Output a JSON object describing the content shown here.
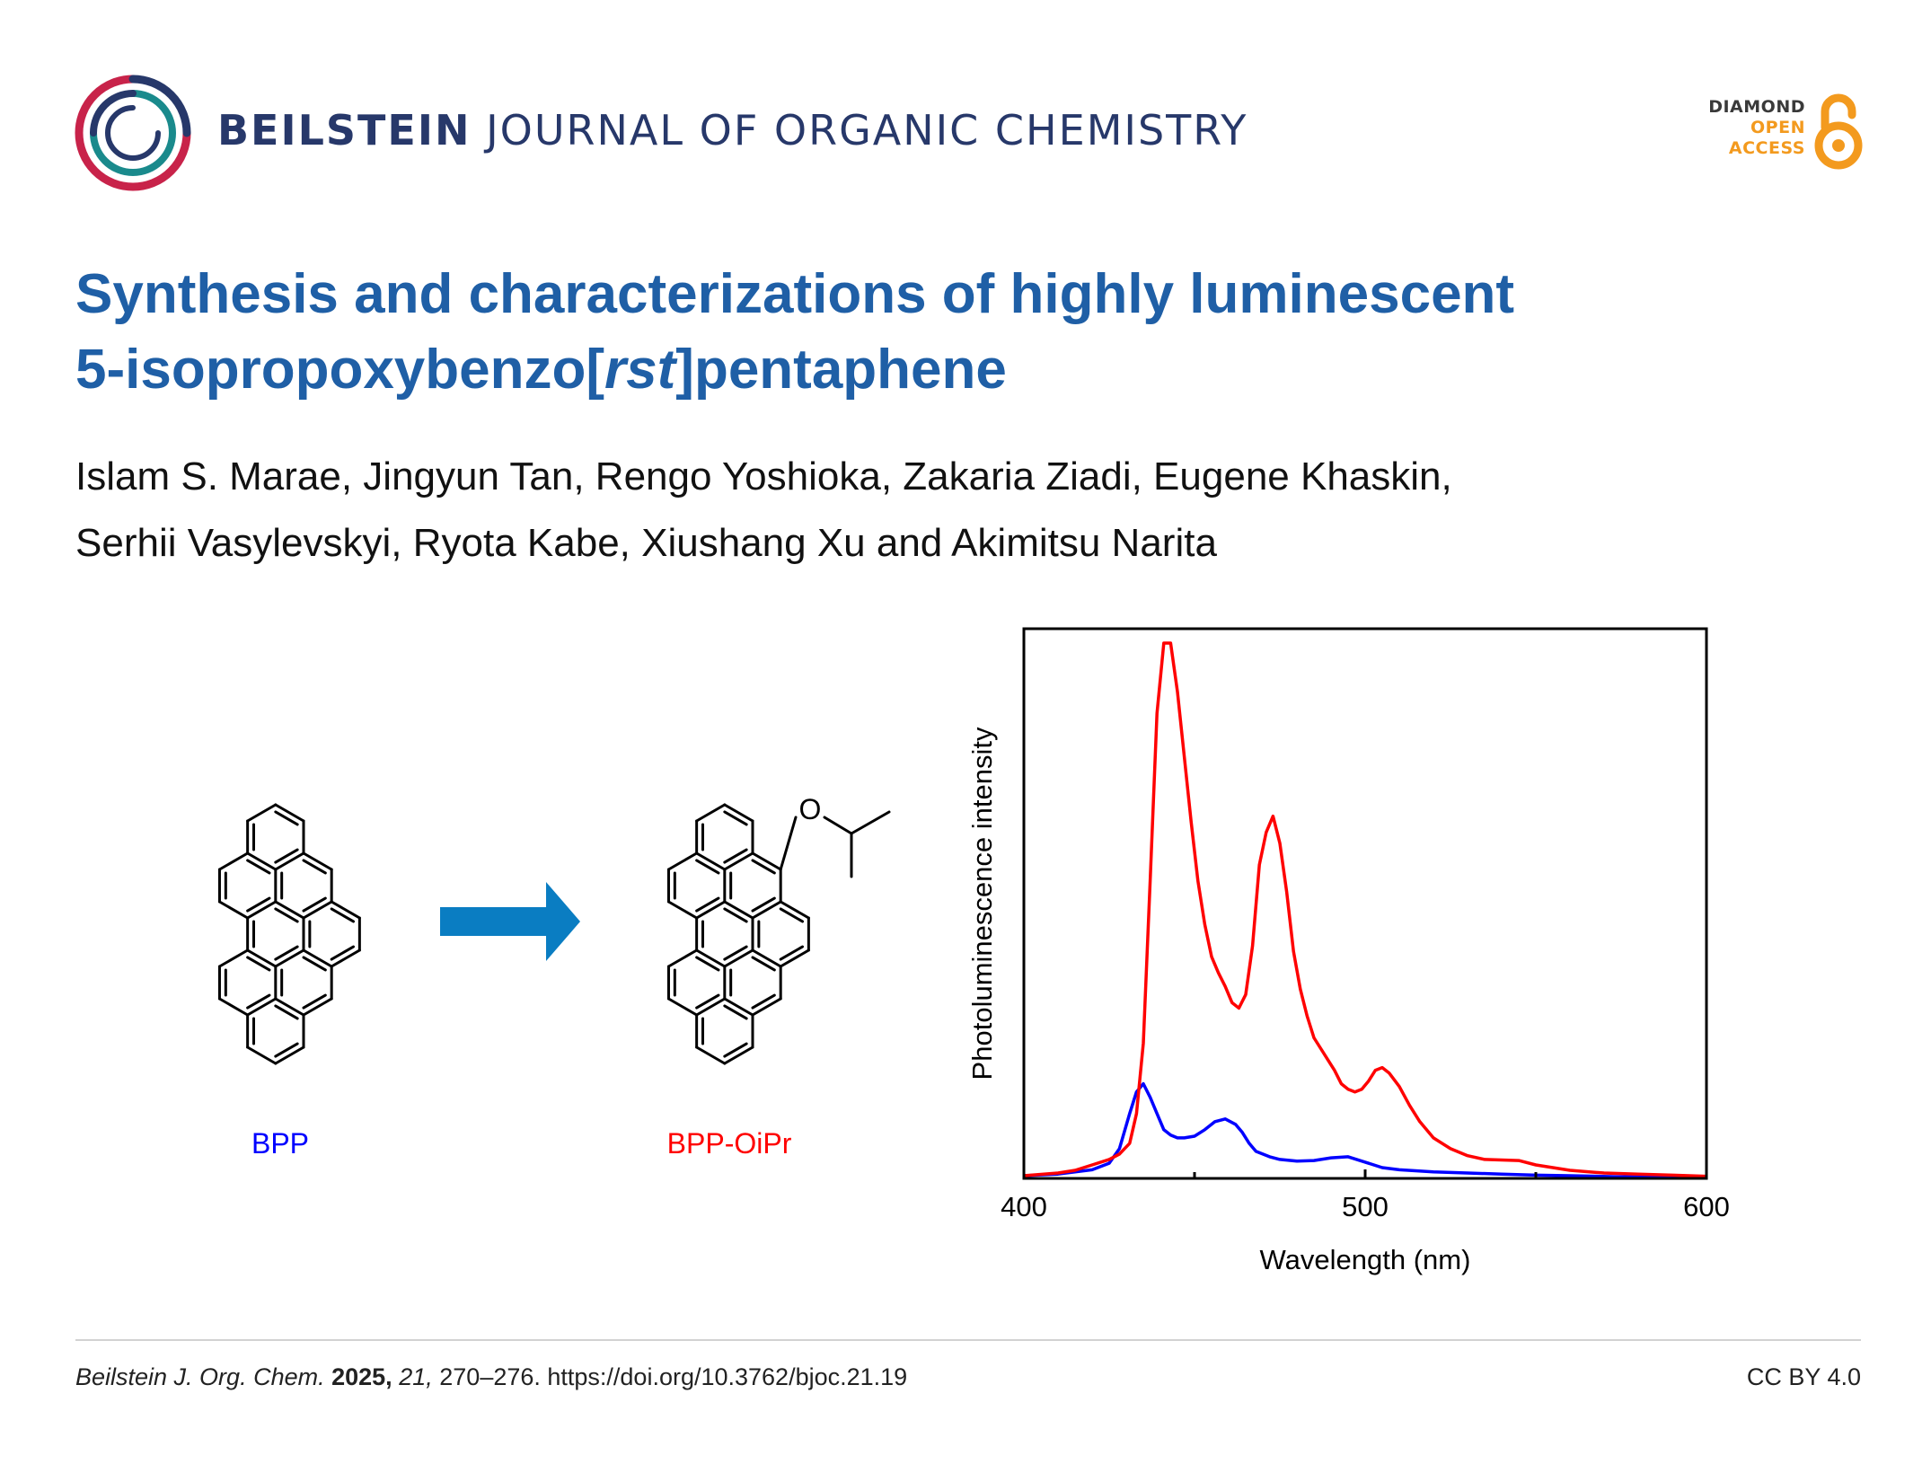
{
  "header": {
    "journal_bold": "BEILSTEIN",
    "journal_rest": "JOURNAL OF ORGANIC CHEMISTRY",
    "open_access_lines": [
      "DIAMOND",
      "OPEN",
      "ACCESS"
    ],
    "colors": {
      "brand": "#27386a",
      "accent_orange": "#f39a1e",
      "logo_red": "#c8234a",
      "logo_teal": "#1a8a8c"
    }
  },
  "article": {
    "title_pre": "Synthesis and characterizations of highly luminescent",
    "title_line2_pre": "5-isopropoxybenzo[",
    "title_line2_italic": "rst",
    "title_line2_post": "]pentaphene",
    "authors_line1": "Islam S. Marae, Jingyun Tan, Rengo Yoshioka, Zakaria Ziadi, Eugene Khaskin,",
    "authors_line2": "Serhii Vasylevskyi, Ryota Kabe, Xiushang Xu and Akimitsu Narita",
    "title_color": "#1f5fa6"
  },
  "scheme": {
    "compound_1": "BPP",
    "compound_2": "BPP-OiPr",
    "oxygen_label": "O",
    "compound_1_color": "#0000ff",
    "compound_2_color": "#ff0000",
    "arrow_color": "#0a7dc2"
  },
  "chart_data": {
    "type": "line",
    "xlabel": "Wavelength (nm)",
    "ylabel": "Photoluminescence intensity",
    "xlim": [
      400,
      600
    ],
    "ylim": [
      0,
      1.0
    ],
    "xticks": [
      400,
      500,
      600
    ],
    "minor_xticks": [
      450,
      550
    ],
    "grid": false,
    "y_tick_labels": false,
    "series": [
      {
        "color": "#ff0000",
        "x": [
          400,
          410,
          415,
          420,
          425,
          428,
          431,
          433,
          435,
          437,
          439,
          441,
          443,
          445,
          447,
          449,
          451,
          453,
          455,
          457,
          459,
          461,
          463,
          465,
          467,
          469,
          471,
          473,
          475,
          477,
          479,
          481,
          483,
          485,
          487,
          489,
          491,
          493,
          495,
          497,
          499,
          501,
          503,
          505,
          507,
          510,
          513,
          516,
          520,
          525,
          530,
          535,
          540,
          545,
          550,
          555,
          560,
          570,
          580,
          590,
          600
        ],
        "y": [
          0.005,
          0.01,
          0.015,
          0.025,
          0.035,
          0.045,
          0.065,
          0.12,
          0.25,
          0.55,
          0.86,
          0.99,
          0.99,
          0.9,
          0.78,
          0.66,
          0.55,
          0.47,
          0.41,
          0.38,
          0.355,
          0.325,
          0.315,
          0.34,
          0.43,
          0.58,
          0.64,
          0.67,
          0.62,
          0.53,
          0.42,
          0.35,
          0.3,
          0.26,
          0.24,
          0.22,
          0.2,
          0.175,
          0.165,
          0.16,
          0.165,
          0.18,
          0.2,
          0.205,
          0.195,
          0.17,
          0.135,
          0.105,
          0.075,
          0.055,
          0.042,
          0.035,
          0.034,
          0.033,
          0.025,
          0.02,
          0.015,
          0.01,
          0.008,
          0.006,
          0.004
        ]
      },
      {
        "color": "#0000ff",
        "x": [
          400,
          410,
          415,
          420,
          425,
          428,
          431,
          433,
          435,
          437,
          439,
          441,
          443,
          445,
          447,
          450,
          453,
          456,
          459,
          462,
          464,
          466,
          468,
          470,
          472,
          475,
          480,
          485,
          490,
          495,
          500,
          505,
          510,
          520,
          530,
          540,
          550,
          560,
          575,
          600
        ],
        "y": [
          0.005,
          0.008,
          0.012,
          0.016,
          0.028,
          0.055,
          0.12,
          0.16,
          0.175,
          0.15,
          0.12,
          0.09,
          0.08,
          0.075,
          0.075,
          0.078,
          0.09,
          0.105,
          0.11,
          0.1,
          0.085,
          0.065,
          0.05,
          0.045,
          0.04,
          0.035,
          0.032,
          0.033,
          0.038,
          0.04,
          0.03,
          0.02,
          0.016,
          0.012,
          0.01,
          0.008,
          0.006,
          0.005,
          0.003,
          0.002
        ]
      }
    ]
  },
  "footer": {
    "journal_abbrev": "Beilstein J. Org. Chem.",
    "year": "2025,",
    "volume": "21,",
    "pages_doi": "270–276. https://doi.org/10.3762/bjoc.21.19",
    "license": "CC BY 4.0"
  }
}
